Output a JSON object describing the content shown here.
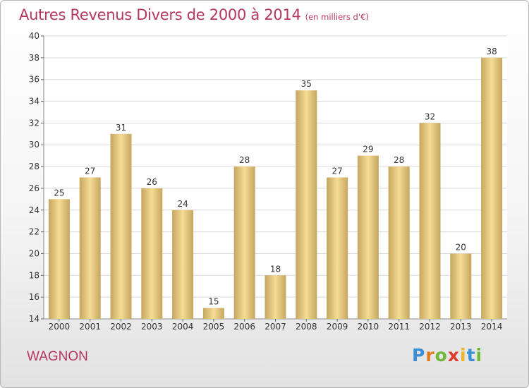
{
  "title": "Autres Revenus Divers de 2000 à 2014",
  "unit_note": "(en milliers d'€)",
  "place_name": "WAGNON",
  "logo": {
    "letters": [
      "P",
      "r",
      "o",
      "x",
      "i",
      "t",
      "i"
    ],
    "colors": [
      "#3b8fd6",
      "#e07b1e",
      "#6fb83a",
      "#e03b2a",
      "#f0b42a",
      "#3b8fd6",
      "#6fb83a"
    ]
  },
  "chart_data": {
    "type": "bar",
    "categories": [
      "2000",
      "2001",
      "2002",
      "2003",
      "2004",
      "2005",
      "2006",
      "2007",
      "2008",
      "2009",
      "2010",
      "2011",
      "2012",
      "2013",
      "2014"
    ],
    "values": [
      25,
      27,
      31,
      26,
      24,
      15,
      28,
      18,
      35,
      27,
      29,
      28,
      32,
      20,
      38
    ],
    "ylim": [
      14,
      40
    ],
    "yticks": [
      14,
      16,
      18,
      20,
      22,
      24,
      26,
      28,
      30,
      32,
      34,
      36,
      38,
      40
    ],
    "grid": true,
    "colors": {
      "bar_light": "#f5dc94",
      "bar_dark": "#c6a65e",
      "grid": "#d9d9d9",
      "text": "#333333"
    }
  }
}
